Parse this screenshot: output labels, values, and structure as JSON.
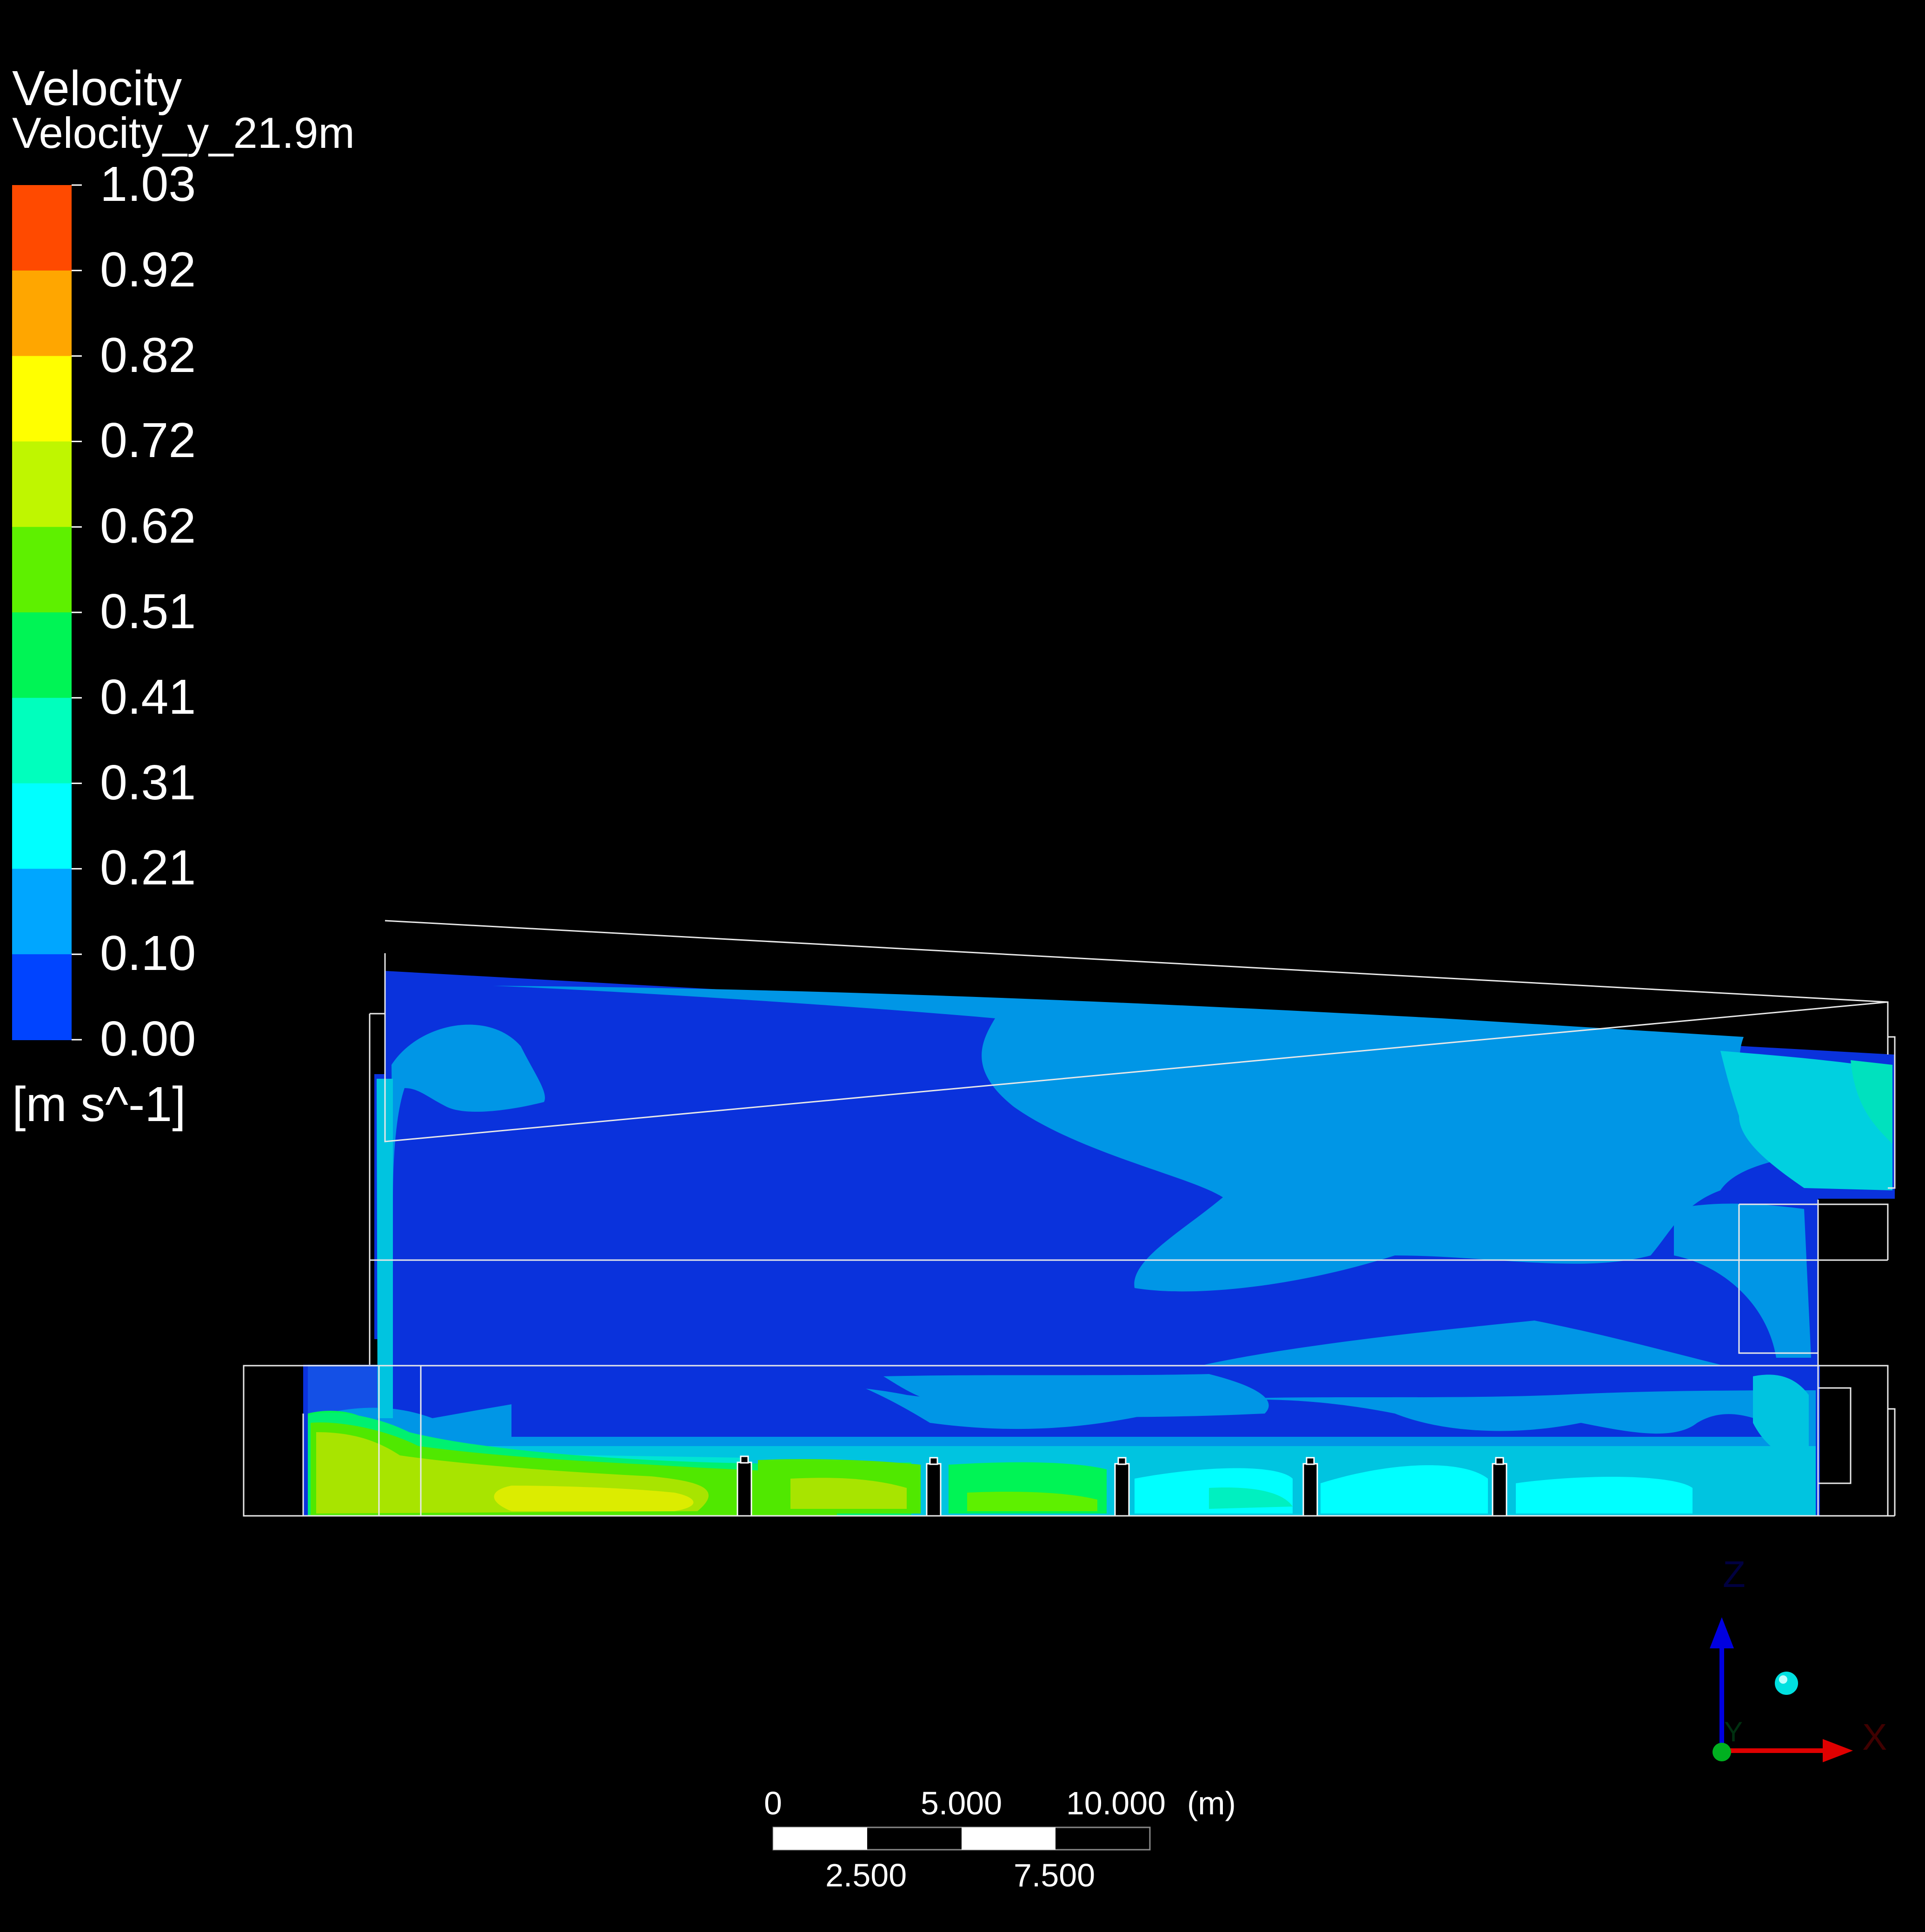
{
  "legend": {
    "title": "Velocity",
    "subtitle": "Velocity_y_21.9m",
    "units": "[m s^-1]",
    "ticks": [
      "1.03",
      "0.92",
      "0.82",
      "0.72",
      "0.62",
      "0.51",
      "0.41",
      "0.31",
      "0.21",
      "0.10",
      "0.00"
    ],
    "colors": [
      "#ff4a00",
      "#ffa600",
      "#ffff00",
      "#bff600",
      "#5ef000",
      "#00f455",
      "#00ffbd",
      "#00ffff",
      "#00a6ff",
      "#0044ff"
    ]
  },
  "scale_bar": {
    "top_labels": [
      "0",
      "5.000",
      "10.000"
    ],
    "unit": "(m)",
    "bottom_labels": [
      "2.500",
      "7.500"
    ]
  },
  "triad": {
    "z_label": "Z",
    "x_label": "X",
    "y_label": "Y"
  }
}
